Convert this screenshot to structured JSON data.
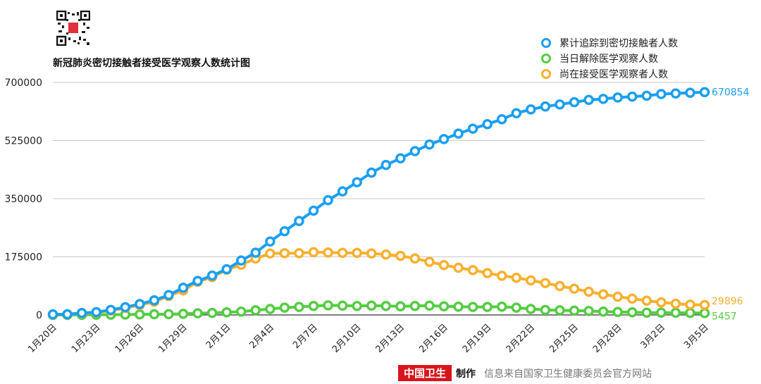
{
  "header": {
    "title": "新冠肺炎密切接触者接受医学观察人数统计图"
  },
  "footer": {
    "brand": "中国卫生",
    "made": "制作",
    "source": "信息来自国家卫生健康委员会官方网站"
  },
  "colors": {
    "blue": "#1a9ff0",
    "green": "#55cc44",
    "orange": "#f8b030"
  },
  "chart_data": {
    "type": "line",
    "title": "新冠肺炎密切接触者接受医学观察人数统计图",
    "ylim": [
      0,
      700000
    ],
    "yticks": [
      "0",
      "175000",
      "350000",
      "525000",
      "700000"
    ],
    "ytick_values": [
      0,
      175000,
      350000,
      525000,
      700000
    ],
    "grid": true,
    "legend_position": "top-right",
    "x": [
      "1月20日",
      "1月21日",
      "1月22日",
      "1月23日",
      "1月24日",
      "1月25日",
      "1月26日",
      "1月27日",
      "1月28日",
      "1月29日",
      "1月30日",
      "1月31日",
      "2月1日",
      "2月2日",
      "2月3日",
      "2月4日",
      "2月5日",
      "2月6日",
      "2月7日",
      "2月8日",
      "2月9日",
      "2月10日",
      "2月11日",
      "2月12日",
      "2月13日",
      "2月14日",
      "2月15日",
      "2月16日",
      "2月17日",
      "2月18日",
      "2月19日",
      "2月20日",
      "2月21日",
      "2月22日",
      "2月23日",
      "2月24日",
      "2月25日",
      "2月26日",
      "2月27日",
      "2月28日",
      "2月29日",
      "3月1日",
      "3月2日",
      "3月3日",
      "3月4日",
      "3月5日"
    ],
    "xtick_labels": [
      "1月20日",
      "1月23日",
      "1月26日",
      "1月29日",
      "2月1日",
      "2月4日",
      "2月7日",
      "2月10日",
      "2月13日",
      "2月16日",
      "2月19日",
      "2月22日",
      "2月25日",
      "2月28日",
      "3月2日",
      "3月5日"
    ],
    "series": [
      {
        "name": "累计追踪到密切接触者人数",
        "color": "#1a9ff0",
        "end_label": "670854",
        "values": [
          1739,
          2197,
          5897,
          8420,
          15197,
          23431,
          32799,
          44132,
          59990,
          81947,
          102427,
          118478,
          137594,
          163844,
          187518,
          221015,
          252154,
          282813,
          314028,
          345498,
          371905,
          399487,
          428438,
          451462,
          471531,
          493067,
          513183,
          529418,
          546016,
          560901,
          574418,
          589163,
          607288,
          618915,
          627509,
          633696,
          640637,
          647406,
          650419,
          654548,
          657339,
          659899,
          664899,
          666742,
          668910,
          670854
        ]
      },
      {
        "name": "当日解除医学观察人数",
        "color": "#55cc44",
        "end_label": "5457",
        "values": [
          0,
          0,
          300,
          500,
          800,
          1000,
          1500,
          2000,
          2500,
          3500,
          5000,
          6000,
          8000,
          10000,
          14000,
          18000,
          22000,
          24000,
          27000,
          29000,
          28000,
          27000,
          28000,
          27000,
          26000,
          27000,
          28000,
          26000,
          25000,
          24000,
          24000,
          25000,
          22000,
          18000,
          15000,
          14000,
          13000,
          12000,
          10000,
          9000,
          8000,
          7000,
          7000,
          6500,
          6000,
          5457
        ]
      },
      {
        "name": "尚在接受医学观察者人数",
        "color": "#f8b030",
        "end_label": "29896",
        "values": [
          1500,
          1900,
          5000,
          7500,
          13000,
          21000,
          30000,
          40000,
          57000,
          74000,
          100000,
          114000,
          136000,
          151000,
          170000,
          185000,
          186000,
          186000,
          189000,
          188000,
          187000,
          187000,
          185000,
          182000,
          178000,
          170000,
          160000,
          150000,
          142000,
          135000,
          126000,
          118000,
          112000,
          104000,
          96000,
          87000,
          79000,
          70000,
          62000,
          55000,
          49000,
          43000,
          38000,
          34000,
          31000,
          29896
        ]
      }
    ]
  }
}
